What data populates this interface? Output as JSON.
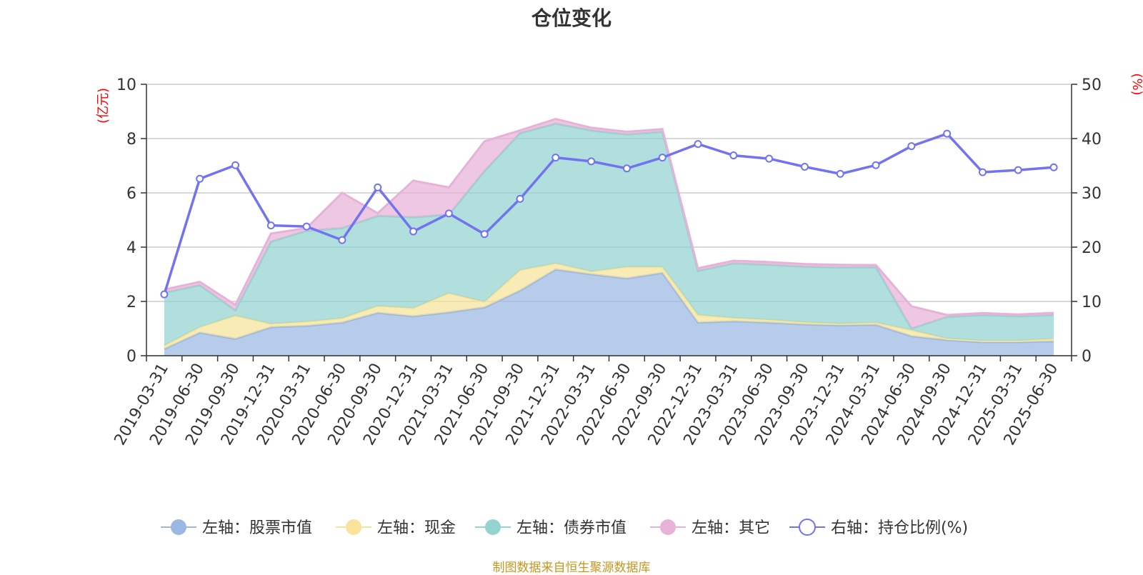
{
  "title": "仓位变化",
  "source_note": "制图数据来自恒生聚源数据库",
  "colors": {
    "stock": "#9bb8e3",
    "cash": "#f7e39a",
    "bond": "#93d3d0",
    "other": "#e7b2d8",
    "ratio": "#7273f0",
    "axis_unit": "#ff0000",
    "grid": "#cccccc",
    "axis": "#333333"
  },
  "chart_data": {
    "type": "area",
    "stacked": true,
    "categories": [
      "2019-03-31",
      "2019-06-30",
      "2019-09-30",
      "2019-12-31",
      "2020-03-31",
      "2020-06-30",
      "2020-09-30",
      "2020-12-31",
      "2021-03-31",
      "2021-06-30",
      "2021-09-30",
      "2021-12-31",
      "2022-03-31",
      "2022-06-30",
      "2022-09-30",
      "2022-12-31",
      "2023-03-31",
      "2023-06-30",
      "2023-09-30",
      "2023-12-31",
      "2024-03-31",
      "2024-06-30",
      "2024-09-30",
      "2024-12-31",
      "2025-03-31",
      "2025-06-30"
    ],
    "left_axis": {
      "unit": "(亿元)",
      "ylim": [
        0,
        10
      ],
      "ticks": [
        "0",
        "2",
        "4",
        "6",
        "8",
        "10"
      ]
    },
    "right_axis": {
      "unit": "(%)",
      "ylim": [
        0,
        50
      ],
      "ticks": [
        "0",
        "10",
        "20",
        "30",
        "40",
        "50"
      ]
    },
    "series": [
      {
        "name": "左轴：股票市值",
        "axis": "left",
        "kind": "area",
        "color_key": "stock",
        "values": [
          0.25,
          0.85,
          0.62,
          1.05,
          1.1,
          1.22,
          1.58,
          1.45,
          1.6,
          1.78,
          2.4,
          3.18,
          3.0,
          2.85,
          3.05,
          1.22,
          1.27,
          1.22,
          1.15,
          1.12,
          1.14,
          0.72,
          0.58,
          0.5,
          0.5,
          0.53
        ]
      },
      {
        "name": "左轴：现金",
        "axis": "left",
        "kind": "area",
        "color_key": "cash",
        "values": [
          0.12,
          0.2,
          0.85,
          0.12,
          0.15,
          0.16,
          0.25,
          0.3,
          0.7,
          0.2,
          0.75,
          0.22,
          0.1,
          0.42,
          0.22,
          0.28,
          0.12,
          0.1,
          0.08,
          0.06,
          0.08,
          0.22,
          0.05,
          0.05,
          0.05,
          0.1
        ]
      },
      {
        "name": "左轴：债券市值",
        "axis": "left",
        "kind": "area",
        "color_key": "bond",
        "values": [
          1.95,
          1.55,
          0.2,
          3.03,
          3.35,
          3.32,
          3.32,
          3.35,
          2.9,
          4.82,
          5.05,
          5.15,
          5.2,
          4.88,
          4.98,
          1.62,
          2.01,
          2.03,
          2.05,
          2.07,
          2.04,
          0.06,
          0.8,
          0.95,
          0.9,
          0.87
        ]
      },
      {
        "name": "左轴：其它",
        "axis": "left",
        "kind": "area",
        "color_key": "other",
        "values": [
          0.12,
          0.12,
          0.2,
          0.3,
          0.1,
          1.3,
          0.1,
          1.35,
          1.0,
          1.1,
          0.1,
          0.17,
          0.1,
          0.1,
          0.1,
          0.1,
          0.1,
          0.1,
          0.1,
          0.1,
          0.08,
          0.82,
          0.07,
          0.07,
          0.07,
          0.08
        ]
      },
      {
        "name": "右轴：持仓比例(%)",
        "axis": "right",
        "kind": "line",
        "color_key": "ratio",
        "values": [
          11.3,
          32.6,
          35.1,
          24.0,
          23.8,
          21.3,
          31.0,
          22.9,
          26.2,
          22.4,
          28.9,
          36.5,
          35.8,
          34.5,
          36.5,
          39.0,
          36.9,
          36.3,
          34.8,
          33.5,
          35.1,
          38.6,
          40.9,
          33.8,
          34.2,
          34.7
        ]
      }
    ],
    "legend_position": "bottom-center",
    "grid": true
  }
}
